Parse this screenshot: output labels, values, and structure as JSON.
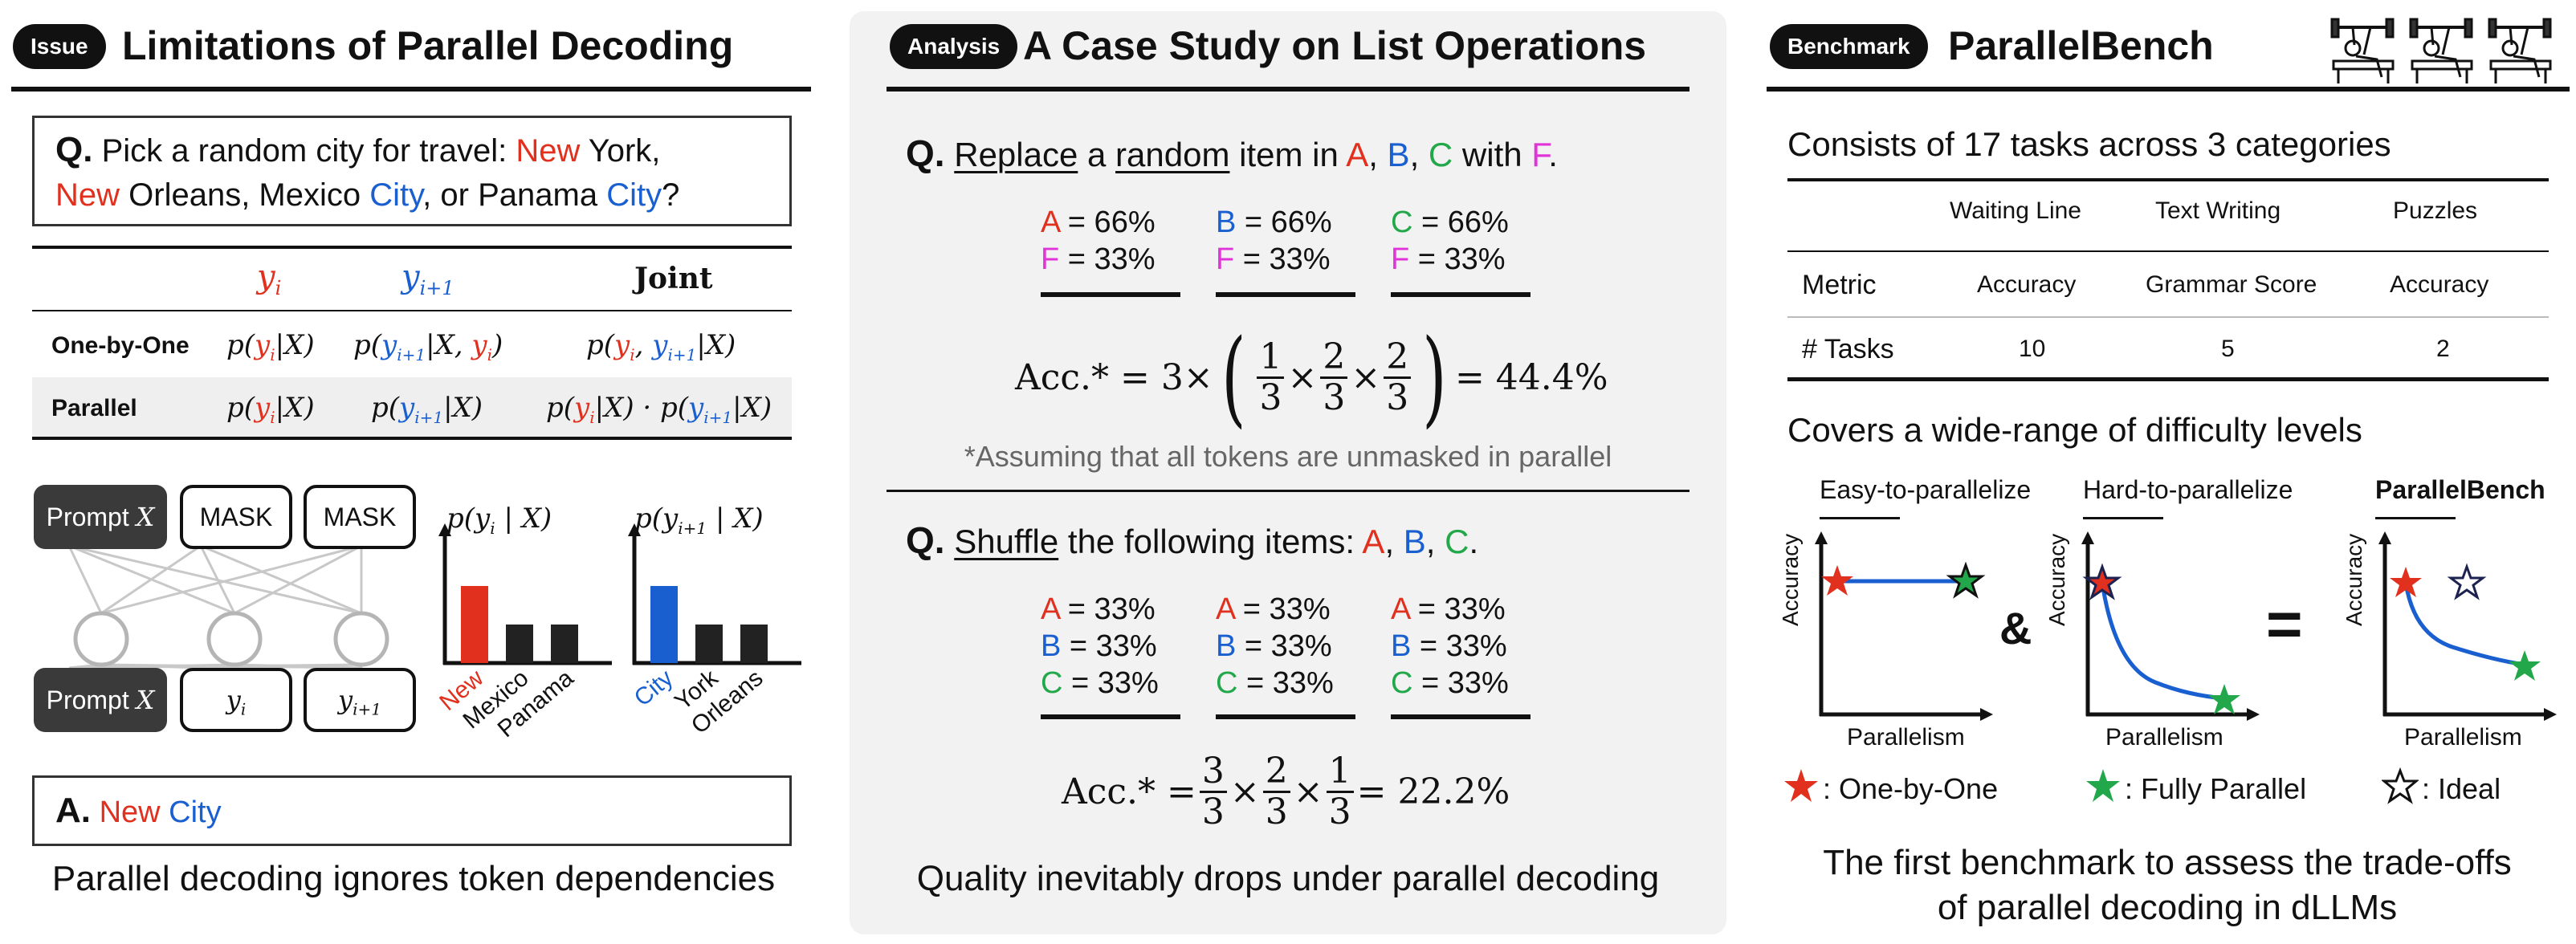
{
  "panel1": {
    "badge": "Issue",
    "title": "Limitations of Parallel Decoding",
    "question": {
      "q_label": "Q.",
      "text_1": "Pick a random city for travel: ",
      "new_1": "New",
      "york": " York,",
      "new_2": "New",
      "orleans_mexico": " Orleans, Mexico ",
      "city_1": "City",
      "or_panama": ", or Panama ",
      "city_2": "City",
      "end": "?"
    },
    "table": {
      "col_yi": "yi",
      "col_yi1": "yi+1",
      "col_joint": "Joint",
      "row1_label": "One-by-One",
      "row2_label": "Parallel"
    },
    "diagram": {
      "prompt_top": "Prompt X",
      "mask_1": "MASK",
      "mask_2": "MASK",
      "prompt_bottom": "Prompt X",
      "out_yi": "yi",
      "out_yi1": "yi+1",
      "chart1_title": "p(yi | X)",
      "chart2_title": "p(yi+1 | X)"
    },
    "answer": {
      "a_label": "A.",
      "new": "New",
      "city": "City"
    },
    "caption": "Parallel decoding ignores token dependencies"
  },
  "chart_data": [
    {
      "type": "bar",
      "title": "p(yi | X)",
      "categories": [
        "New",
        "Mexico",
        "Panama"
      ],
      "values": [
        0.6,
        0.3,
        0.3
      ],
      "colors": [
        "#e1301e",
        "#222222",
        "#222222"
      ]
    },
    {
      "type": "bar",
      "title": "p(yi+1 | X)",
      "categories": [
        "City",
        "York",
        "Orleans"
      ],
      "values": [
        0.6,
        0.3,
        0.3
      ],
      "colors": [
        "#1a5fd0",
        "#222222",
        "#222222"
      ]
    }
  ],
  "panel2": {
    "badge": "Analysis",
    "title": "A Case Study on List Operations",
    "q1": {
      "q_label": "Q.",
      "w_replace": "Replace",
      "w_a": " a ",
      "w_random": "random",
      "w_item_in": " item in ",
      "A": "A",
      "comma1": ", ",
      "B": "B",
      "comma2": ", ",
      "C": "C",
      "w_with": " with ",
      "F": "F",
      "dot": "."
    },
    "q1_cols": [
      {
        "top_letter": "A",
        "top_val": " = 66%",
        "bot_letter": "F",
        "bot_val": " = 33%"
      },
      {
        "top_letter": "B",
        "top_val": " = 66%",
        "bot_letter": "F",
        "bot_val": " = 33%"
      },
      {
        "top_letter": "C",
        "top_val": " = 66%",
        "bot_letter": "F",
        "bot_val": " = 33%"
      }
    ],
    "formula1": {
      "lhs": "Acc.* = 3×",
      "result": " = 44.4%"
    },
    "note": "*Assuming that all tokens are unmasked in parallel",
    "q2": {
      "q_label": "Q.",
      "w_shuffle": "Shuffle",
      "w_rest": " the following items: ",
      "A": "A",
      "comma1": ", ",
      "B": "B",
      "comma2": ", ",
      "C": "C",
      "dot": "."
    },
    "q2_cols": [
      {
        "a": "A",
        "av": " = 33%",
        "b": "B",
        "bv": " = 33%",
        "c": "C",
        "cv": " = 33%"
      },
      {
        "a": "A",
        "av": " = 33%",
        "b": "B",
        "bv": " = 33%",
        "c": "C",
        "cv": " = 33%"
      },
      {
        "a": "A",
        "av": " = 33%",
        "b": "B",
        "bv": " = 33%",
        "c": "C",
        "cv": " = 33%"
      }
    ],
    "formula2": {
      "lhs": "Acc.* = ",
      "result": " = 22.2%"
    },
    "caption": "Quality inevitably drops under parallel decoding"
  },
  "panel3": {
    "badge": "Benchmark",
    "title": "ParallelBench",
    "subtitle1": "Consists of 17 tasks across 3 categories",
    "table": {
      "headers": [
        "Waiting Line",
        "Text Writing",
        "Puzzles"
      ],
      "metric_label": "Metric",
      "metrics": [
        "Accuracy",
        "Grammar Score",
        "Accuracy"
      ],
      "tasks_label": "# Tasks",
      "tasks": [
        "10",
        "5",
        "2"
      ]
    },
    "subtitle2": "Covers a wide-range of difficulty levels",
    "plots": [
      {
        "label": "Easy-to-parallelize",
        "ylabel": "Accuracy",
        "xlabel": "Parallelism"
      },
      {
        "label": "Hard-to-parallelize",
        "ylabel": "Accuracy",
        "xlabel": "Parallelism"
      },
      {
        "label": "ParallelBench",
        "ylabel": "Accuracy",
        "xlabel": "Parallelism"
      }
    ],
    "amp": "&",
    "eq": "=",
    "legend": {
      "one": ": One-by-One",
      "fully": ": Fully Parallel",
      "ideal": ": Ideal"
    },
    "caption_1": "The first benchmark to assess the trade-offs",
    "caption_2": "of parallel decoding in dLLMs",
    "colors": {
      "red": "#e1301e",
      "blue": "#1a5fd0",
      "green": "#22a84a"
    }
  }
}
